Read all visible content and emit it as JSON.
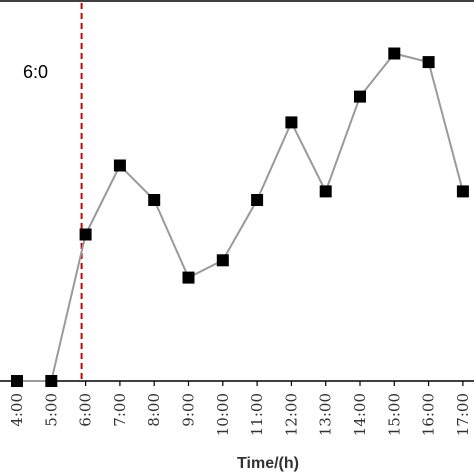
{
  "chart_data": {
    "type": "line",
    "xlabel": "Time/(h)",
    "ylabel": "",
    "grid": false,
    "categories": [
      "4:00",
      "5:00",
      "6:00",
      "7:00",
      "8:00",
      "9:00",
      "10:00",
      "11:00",
      "12:00",
      "13:00",
      "14:00",
      "15:00",
      "16:00",
      "17:00"
    ],
    "series": [
      {
        "values": [
          0,
          0,
          85,
          125,
          105,
          60,
          70,
          105,
          150,
          110,
          165,
          190,
          185,
          110
        ],
        "color": "#9a9a9a",
        "marker": "square",
        "marker_color": "#000000"
      }
    ],
    "ylim": [
      0,
      210
    ],
    "reference_line": {
      "category": "6:00",
      "style": "dashed",
      "color": "#cc0000"
    },
    "annotations": [
      {
        "text": "6:0"
      }
    ]
  }
}
